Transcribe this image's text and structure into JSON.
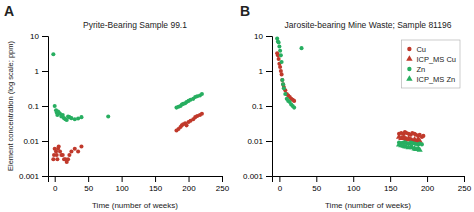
{
  "chart_data": [
    {
      "type": "scatter",
      "title": "Pyrite-Bearing Sample 99.1",
      "annotations": [
        "A"
      ],
      "xlabel": "Time (number of weeks)",
      "ylabel": "Element concentration (log scale; ppm)",
      "xlim": [
        -10,
        250
      ],
      "ylim": [
        0.001,
        10
      ],
      "xticks": [
        0,
        50,
        100,
        150,
        200,
        250
      ],
      "yticks": [
        0.001,
        0.01,
        0.1,
        1,
        10
      ],
      "log": "y",
      "grid": false,
      "series": [
        {
          "color": "#c0392b",
          "marker": "circle",
          "x": [
            -2,
            -1,
            0,
            2,
            3,
            4,
            5,
            6,
            8,
            10,
            12,
            14,
            16,
            18,
            20,
            22,
            25,
            30,
            35,
            40,
            182,
            185,
            188,
            190,
            192,
            195,
            197,
            200,
            203,
            207,
            210,
            213,
            217,
            220
          ],
          "values": [
            0.003,
            0.004,
            0.006,
            0.005,
            0.004,
            0.003,
            0.006,
            0.007,
            0.005,
            0.004,
            0.004,
            0.003,
            0.003,
            0.0025,
            0.003,
            0.004,
            0.005,
            0.006,
            0.005,
            0.007,
            0.02,
            0.022,
            0.025,
            0.028,
            0.03,
            0.032,
            0.028,
            0.035,
            0.038,
            0.042,
            0.048,
            0.052,
            0.055,
            0.06
          ]
        },
        {
          "color": "#27ae60",
          "marker": "circle",
          "x": [
            -2,
            0,
            2,
            3,
            4,
            5,
            6,
            8,
            10,
            12,
            14,
            16,
            18,
            20,
            22,
            25,
            30,
            35,
            40,
            80,
            182,
            185,
            188,
            190,
            192,
            195,
            197,
            200,
            203,
            207,
            210,
            213,
            217,
            220
          ],
          "values": [
            3.0,
            0.1,
            0.075,
            0.065,
            0.055,
            0.07,
            0.065,
            0.06,
            0.05,
            0.055,
            0.045,
            0.042,
            0.04,
            0.05,
            0.048,
            0.045,
            0.042,
            0.044,
            0.048,
            0.05,
            0.09,
            0.095,
            0.1,
            0.11,
            0.115,
            0.12,
            0.13,
            0.14,
            0.15,
            0.16,
            0.18,
            0.19,
            0.2,
            0.22
          ]
        }
      ]
    },
    {
      "type": "scatter",
      "title": "Jarosite-bearing Mine Waste; Sample 81196",
      "annotations": [
        "B"
      ],
      "xlabel": "Time (number of weeks)",
      "xlim": [
        -10,
        250
      ],
      "ylim": [
        0.001,
        10
      ],
      "xticks": [
        0,
        50,
        100,
        150,
        200,
        250
      ],
      "yticks": [
        0.001,
        0.01,
        0.1,
        1,
        10
      ],
      "log": "y",
      "grid": false,
      "legend": "upper right",
      "series": [
        {
          "name": "Cu",
          "color": "#c0392b",
          "marker": "circle",
          "x": [
            -3,
            -2,
            -1,
            0,
            1,
            2,
            3,
            4,
            5,
            6,
            8,
            10,
            12,
            14,
            16,
            18,
            20,
            162,
            165,
            168,
            170,
            172,
            175,
            178,
            180,
            183,
            185,
            188,
            190,
            193,
            195
          ],
          "values": [
            3.2,
            2.8,
            2.2,
            1.6,
            1.3,
            1.0,
            0.8,
            0.55,
            0.42,
            0.35,
            0.28,
            0.22,
            0.2,
            0.18,
            0.16,
            0.15,
            0.14,
            0.016,
            0.017,
            0.016,
            0.018,
            0.017,
            0.016,
            0.015,
            0.017,
            0.016,
            0.015,
            0.014,
            0.015,
            0.013,
            0.014
          ]
        },
        {
          "name": "ICP_MS Cu",
          "color": "#c0392b",
          "marker": "triangle",
          "x": [
            162,
            165,
            168,
            170,
            172,
            175,
            178,
            180,
            183,
            185,
            188,
            190
          ],
          "values": [
            0.013,
            0.012,
            0.013,
            0.012,
            0.011,
            0.012,
            0.011,
            0.01,
            0.011,
            0.01,
            0.011,
            0.01
          ]
        },
        {
          "name": "Zn",
          "color": "#27ae60",
          "marker": "circle",
          "x": [
            -3,
            -2,
            -1,
            0,
            1,
            2,
            3,
            4,
            5,
            6,
            8,
            10,
            12,
            14,
            16,
            18,
            20,
            30,
            162,
            165,
            168,
            170,
            172,
            175,
            178,
            180,
            183,
            185,
            188,
            190,
            193
          ],
          "values": [
            8.5,
            7.0,
            6.5,
            5.0,
            3.8,
            2.8,
            1.8,
            0.55,
            0.42,
            0.32,
            0.22,
            0.16,
            0.14,
            0.13,
            0.11,
            0.1,
            0.09,
            4.5,
            0.009,
            0.0088,
            0.009,
            0.0092,
            0.0088,
            0.0085,
            0.009,
            0.0088,
            0.0085,
            0.0082,
            0.008,
            0.0085,
            0.008
          ]
        },
        {
          "name": "ICP_MS Zn",
          "color": "#27ae60",
          "marker": "triangle",
          "x": [
            162,
            165,
            168,
            170,
            172,
            175,
            178,
            180,
            183,
            185,
            188,
            190
          ],
          "values": [
            0.0078,
            0.0075,
            0.0072,
            0.007,
            0.0068,
            0.0065,
            0.007,
            0.0065,
            0.006,
            0.0058,
            0.006,
            0.0055
          ]
        }
      ]
    }
  ]
}
